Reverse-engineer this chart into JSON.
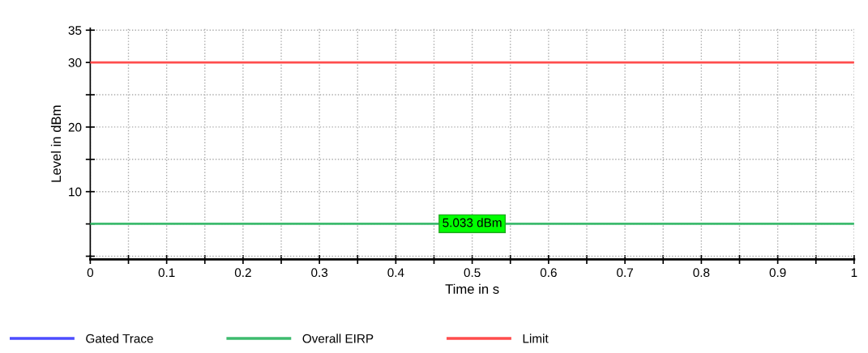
{
  "chart_data": {
    "type": "line",
    "xlabel": "Time in s",
    "ylabel": "Level in dBm",
    "x": [
      0,
      1
    ],
    "series": [
      {
        "name": "Gated Trace",
        "color": "#4d4dff",
        "values": [
          null,
          null
        ]
      },
      {
        "name": "Overall EIRP",
        "color": "#3dbb6e",
        "values": [
          5.033,
          5.033
        ]
      },
      {
        "name": "Limit",
        "color": "#ff4d4d",
        "values": [
          30,
          30
        ]
      }
    ],
    "xlim": [
      0,
      1
    ],
    "xticks": [
      0,
      {
        "value": 0.05,
        "label": null
      },
      0.1,
      {
        "value": 0.15,
        "label": null
      },
      0.2,
      {
        "value": 0.25,
        "label": null
      },
      0.3,
      {
        "value": 0.35,
        "label": null
      },
      0.4,
      {
        "value": 0.45,
        "label": null
      },
      0.5,
      {
        "value": 0.55,
        "label": null
      },
      0.6,
      {
        "value": 0.65,
        "label": null
      },
      0.7,
      {
        "value": 0.75,
        "label": null
      },
      0.8,
      {
        "value": 0.85,
        "label": null
      },
      0.9,
      {
        "value": 0.95,
        "label": null
      },
      1
    ],
    "ylim": [
      -0.5,
      35.3
    ],
    "yticks": [
      {
        "value": 0,
        "label": null
      },
      {
        "value": 5,
        "label": null
      },
      10,
      {
        "value": 15,
        "label": null
      },
      20,
      {
        "value": 25,
        "label": null
      },
      30,
      35
    ],
    "annotations": [
      {
        "text": "5.033 dBm",
        "x": 0.5,
        "y": 5.033
      }
    ],
    "grid": true,
    "legend": "bottom",
    "line_style": "solid"
  }
}
